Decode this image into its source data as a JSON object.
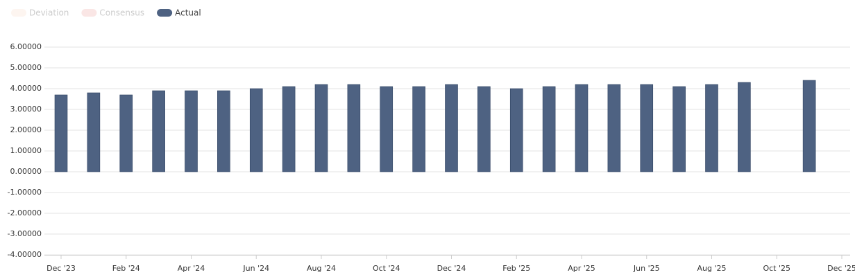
{
  "chart_data": {
    "type": "bar",
    "x": [
      "2023-12",
      "2024-01",
      "2024-02",
      "2024-03",
      "2024-04",
      "2024-05",
      "2024-06",
      "2024-07",
      "2024-08",
      "2024-09",
      "2024-10",
      "2024-11",
      "2024-12",
      "2025-01",
      "2025-02",
      "2025-03",
      "2025-04",
      "2025-05",
      "2025-06",
      "2025-07",
      "2025-08",
      "2025-09",
      "2025-11"
    ],
    "series": [
      {
        "name": "Deviation",
        "color": "#fbeee6",
        "hidden": true,
        "values": [
          null,
          null,
          null,
          null,
          null,
          null,
          null,
          null,
          null,
          null,
          null,
          null,
          null,
          null,
          null,
          null,
          null,
          null,
          null,
          null,
          null,
          null,
          null
        ]
      },
      {
        "name": "Consensus",
        "color": "#f6d6d3",
        "hidden": true,
        "values": [
          null,
          null,
          null,
          null,
          null,
          null,
          null,
          null,
          null,
          null,
          null,
          null,
          null,
          null,
          null,
          null,
          null,
          null,
          null,
          null,
          null,
          null,
          null
        ]
      },
      {
        "name": "Actual",
        "color": "#4e6282",
        "hidden": false,
        "values": [
          3.7,
          3.8,
          3.7,
          3.9,
          3.9,
          3.9,
          4.0,
          4.1,
          4.2,
          4.2,
          4.1,
          4.1,
          4.2,
          4.1,
          4.0,
          4.1,
          4.2,
          4.2,
          4.2,
          4.1,
          4.2,
          4.3,
          4.4
        ]
      }
    ],
    "xlim": [
      "2023-12",
      "2025-12"
    ],
    "xticks": [
      {
        "value": "2023-12",
        "label": "Dec '23"
      },
      {
        "value": "2024-02",
        "label": "Feb '24"
      },
      {
        "value": "2024-04",
        "label": "Apr '24"
      },
      {
        "value": "2024-06",
        "label": "Jun '24"
      },
      {
        "value": "2024-08",
        "label": "Aug '24"
      },
      {
        "value": "2024-10",
        "label": "Oct '24"
      },
      {
        "value": "2024-12",
        "label": "Dec '24"
      },
      {
        "value": "2025-02",
        "label": "Feb '25"
      },
      {
        "value": "2025-04",
        "label": "Apr '25"
      },
      {
        "value": "2025-06",
        "label": "Jun '25"
      },
      {
        "value": "2025-08",
        "label": "Aug '25"
      },
      {
        "value": "2025-10",
        "label": "Oct '25"
      },
      {
        "value": "2025-12",
        "label": "Dec '25"
      }
    ],
    "ylim": [
      -4,
      6
    ],
    "yticks": [
      {
        "value": -4,
        "label": "-4.00000"
      },
      {
        "value": -3,
        "label": "-3.00000"
      },
      {
        "value": -2,
        "label": "-2.00000"
      },
      {
        "value": -1,
        "label": "-1.00000"
      },
      {
        "value": 0,
        "label": "0.00000"
      },
      {
        "value": 1,
        "label": "1.00000"
      },
      {
        "value": 2,
        "label": "2.00000"
      },
      {
        "value": 3,
        "label": "3.00000"
      },
      {
        "value": 4,
        "label": "4.00000"
      },
      {
        "value": 5,
        "label": "5.00000"
      },
      {
        "value": 6,
        "label": "6.00000"
      }
    ],
    "grid": true
  }
}
